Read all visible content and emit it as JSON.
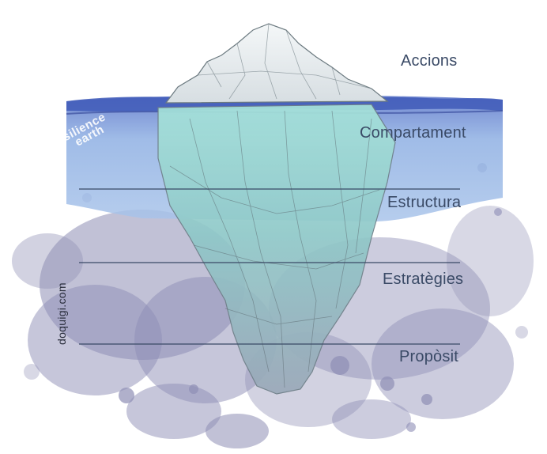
{
  "levels": {
    "accions": "Accions",
    "comportament": "Compartament",
    "estructura": "Estructura",
    "estrategies": "Estratègies",
    "proposit": "Propòsit"
  },
  "watermarks": {
    "resilience_1": "resilience",
    "resilience_2": "earth",
    "doquigi": "doquigi.com"
  },
  "colors": {
    "water": "#7f97d6",
    "paint": "#8e8eb5",
    "ice_underwater": "#9fd8d4",
    "ice_top": "#eef2f3",
    "label": "#3a4a66"
  }
}
